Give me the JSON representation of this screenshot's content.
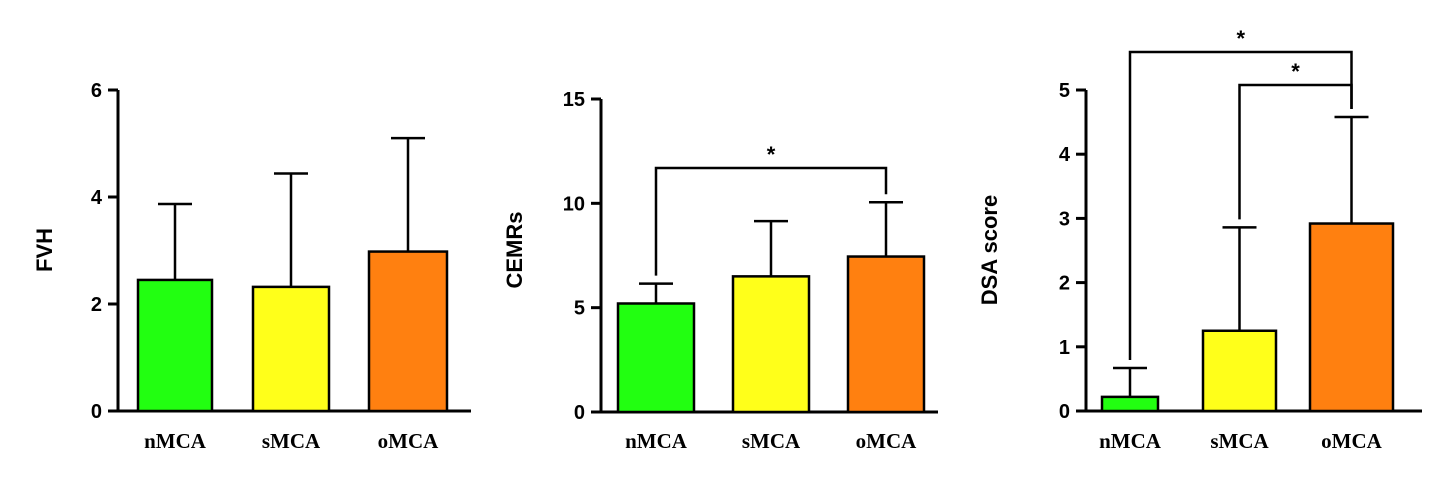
{
  "colors": {
    "nMCA": "#22ff11",
    "sMCA": "#ffff1a",
    "oMCA": "#ff8010",
    "axis": "#000000"
  },
  "chart_data": [
    {
      "type": "bar",
      "categories": [
        "nMCA",
        "sMCA",
        "oMCA"
      ],
      "values": [
        2.45,
        2.32,
        2.98
      ],
      "errors": [
        1.42,
        2.12,
        2.12
      ],
      "ylabel": "FVH",
      "ylim": [
        0,
        6
      ],
      "yticks": [
        "0",
        "2",
        "4",
        "6"
      ],
      "significance": []
    },
    {
      "type": "bar",
      "categories": [
        "nMCA",
        "sMCA",
        "oMCA"
      ],
      "values": [
        5.2,
        6.5,
        7.45
      ],
      "errors": [
        0.95,
        2.65,
        2.6
      ],
      "ylabel": "CEMRs",
      "ylim": [
        0,
        15
      ],
      "yticks": [
        "0",
        "5",
        "10",
        "15"
      ],
      "significance": [
        {
          "from": "nMCA",
          "to": "oMCA",
          "label": "*"
        }
      ]
    },
    {
      "type": "bar",
      "categories": [
        "nMCA",
        "sMCA",
        "oMCA"
      ],
      "values": [
        0.22,
        1.25,
        2.92
      ],
      "errors": [
        0.45,
        1.61,
        1.66
      ],
      "ylabel": "DSA score",
      "ylim": [
        0,
        5
      ],
      "yticks": [
        "0",
        "1",
        "2",
        "3",
        "4",
        "5"
      ],
      "significance": [
        {
          "from": "sMCA",
          "to": "oMCA",
          "label": "*"
        },
        {
          "from": "nMCA",
          "to": "oMCA",
          "label": "*"
        }
      ]
    }
  ]
}
